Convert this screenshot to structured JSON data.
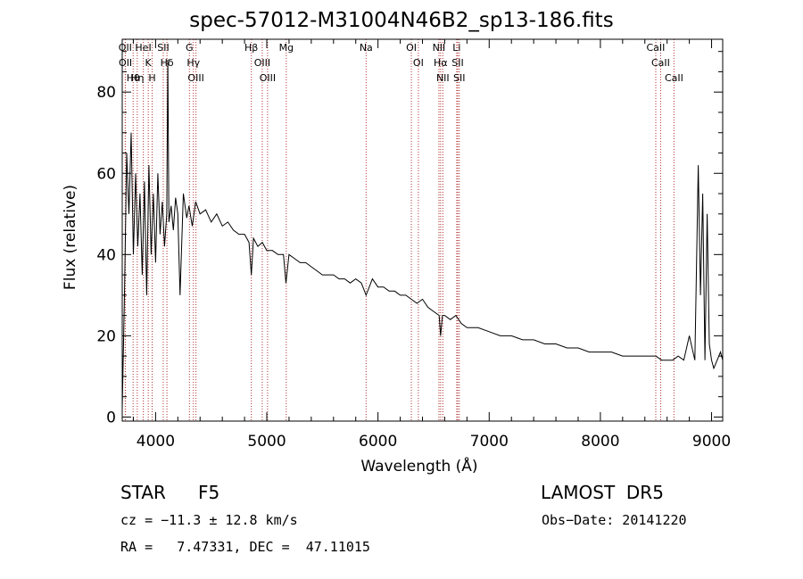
{
  "chart_data": {
    "type": "line",
    "title": "spec-57012-M31004N46B2_sp13-186.fits",
    "xlabel": "Wavelength (Å)",
    "ylabel": "Flux (relative)",
    "xlim": [
      3700,
      9100
    ],
    "ylim": [
      -1,
      93
    ],
    "x_ticks": [
      4000,
      5000,
      6000,
      7000,
      8000,
      9000
    ],
    "y_ticks": [
      0,
      20,
      40,
      60,
      80
    ],
    "grid": false,
    "series": [
      {
        "color": "#000000",
        "x": [
          3700,
          3720,
          3740,
          3760,
          3780,
          3800,
          3820,
          3840,
          3860,
          3880,
          3900,
          3920,
          3940,
          3960,
          3980,
          4000,
          4020,
          4040,
          4060,
          4080,
          4100,
          4110,
          4120,
          4140,
          4160,
          4180,
          4200,
          4220,
          4250,
          4280,
          4300,
          4330,
          4360,
          4400,
          4450,
          4500,
          4550,
          4600,
          4650,
          4700,
          4750,
          4800,
          4840,
          4861,
          4880,
          4920,
          4960,
          5000,
          5050,
          5100,
          5150,
          5172,
          5200,
          5250,
          5300,
          5350,
          5400,
          5450,
          5500,
          5550,
          5600,
          5650,
          5700,
          5750,
          5800,
          5850,
          5893,
          5950,
          6000,
          6050,
          6100,
          6150,
          6200,
          6250,
          6300,
          6350,
          6400,
          6450,
          6500,
          6550,
          6563,
          6580,
          6600,
          6650,
          6700,
          6750,
          6800,
          6900,
          7000,
          7100,
          7200,
          7300,
          7400,
          7500,
          7600,
          7700,
          7800,
          7900,
          8000,
          8100,
          8200,
          8300,
          8400,
          8500,
          8550,
          8600,
          8650,
          8700,
          8750,
          8800,
          8850,
          8880,
          8900,
          8920,
          8940,
          8960,
          8980,
          9000,
          9020,
          9050,
          9080,
          9100
        ],
        "y": [
          2,
          30,
          65,
          50,
          70,
          40,
          60,
          42,
          55,
          35,
          58,
          30,
          62,
          40,
          55,
          38,
          60,
          45,
          53,
          42,
          50,
          88,
          48,
          52,
          46,
          54,
          50,
          30,
          55,
          49,
          52,
          47,
          53,
          50,
          51,
          48,
          50,
          47,
          48,
          46,
          45,
          45,
          43,
          35,
          44,
          42,
          43,
          41,
          41,
          40,
          40,
          33,
          40,
          39,
          38,
          38,
          37,
          36,
          35,
          35,
          35,
          34,
          34,
          33,
          34,
          33,
          30,
          34,
          32,
          32,
          31,
          31,
          30,
          30,
          29,
          28,
          29,
          27,
          26,
          25,
          20,
          25,
          25,
          24,
          25,
          23,
          22,
          22,
          21,
          20,
          20,
          19,
          19,
          18,
          18,
          17,
          17,
          16,
          16,
          16,
          15,
          15,
          15,
          15,
          14,
          14,
          14,
          15,
          14,
          20,
          14,
          62,
          30,
          55,
          14,
          50,
          18,
          14,
          12,
          14,
          16,
          14
        ]
      }
    ],
    "line_markers": [
      {
        "label": "Hθ",
        "x": 3798
      },
      {
        "label": "OII",
        "x": 3727
      },
      {
        "label": "OII",
        "x": 3729
      },
      {
        "label": "Hη",
        "x": 3835
      },
      {
        "label": "K",
        "x": 3934
      },
      {
        "label": "HeI",
        "x": 3889
      },
      {
        "label": "H",
        "x": 3969
      },
      {
        "label": "SII",
        "x": 4069
      },
      {
        "label": "Hδ",
        "x": 4102
      },
      {
        "label": "OIII",
        "x": 4363
      },
      {
        "label": "Hγ",
        "x": 4340
      },
      {
        "label": "G",
        "x": 4304
      },
      {
        "label": "Hβ",
        "x": 4861
      },
      {
        "label": "OIII",
        "x": 5007
      },
      {
        "label": "OIII",
        "x": 4959
      },
      {
        "label": "Mg",
        "x": 5175
      },
      {
        "label": "Na",
        "x": 5893
      },
      {
        "label": "OI",
        "x": 6300
      },
      {
        "label": "OI",
        "x": 6363
      },
      {
        "label": "Hα",
        "x": 6563
      },
      {
        "label": "NII",
        "x": 6548
      },
      {
        "label": "NII",
        "x": 6583
      },
      {
        "label": "SII",
        "x": 6717
      },
      {
        "label": "Li",
        "x": 6708
      },
      {
        "label": "SII",
        "x": 6731
      },
      {
        "label": "CaII",
        "x": 8542
      },
      {
        "label": "CaII",
        "x": 8498
      },
      {
        "label": "CaII",
        "x": 8662
      }
    ]
  },
  "info": {
    "class": "STAR",
    "subclass": "F5",
    "survey": "LAMOST  DR5",
    "velocity": "cz = −11.3 ± 12.8 km/s",
    "obs_date": "Obs−Date: 20141220",
    "coords": "RA =   7.47331, DEC =  47.11015"
  }
}
